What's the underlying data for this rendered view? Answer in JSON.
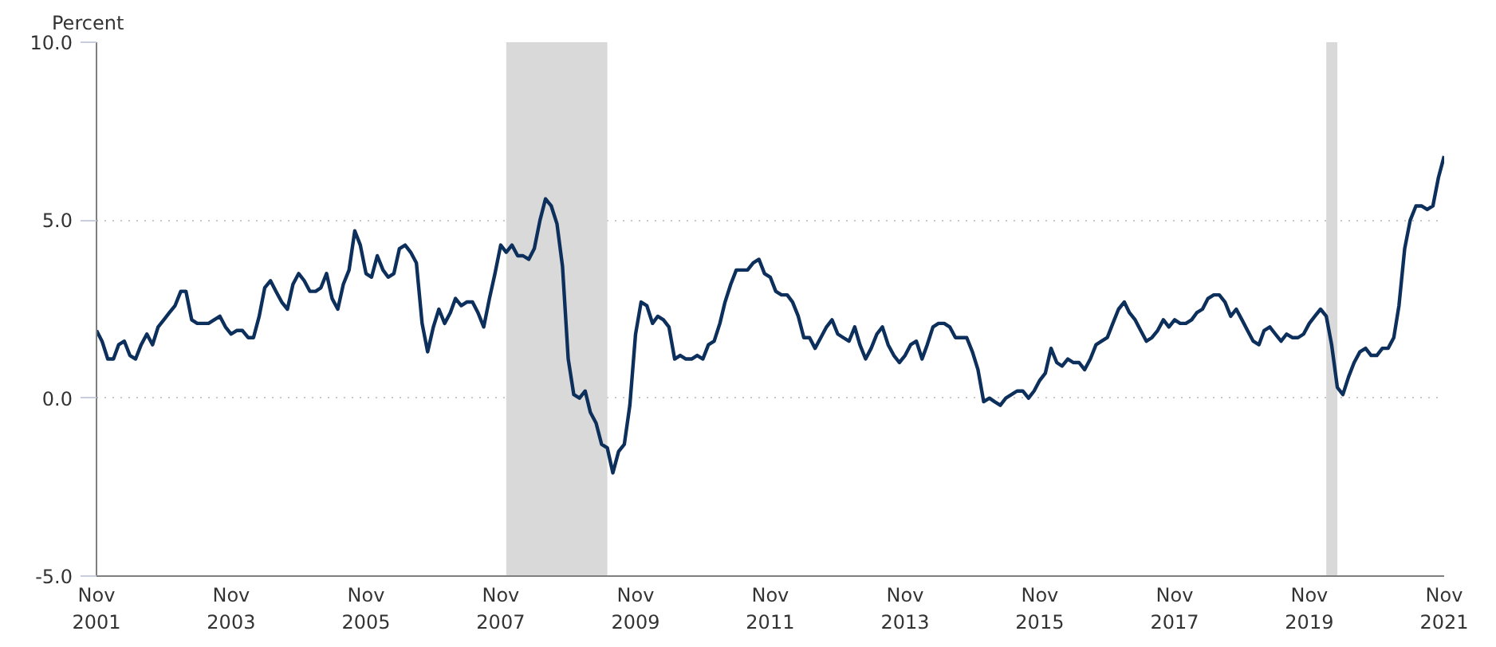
{
  "chart_data": {
    "type": "line",
    "ylabel": "Percent",
    "x": [
      "2001-11",
      "2001-12",
      "2002-01",
      "2002-02",
      "2002-03",
      "2002-04",
      "2002-05",
      "2002-06",
      "2002-07",
      "2002-08",
      "2002-09",
      "2002-10",
      "2002-11",
      "2002-12",
      "2003-01",
      "2003-02",
      "2003-03",
      "2003-04",
      "2003-05",
      "2003-06",
      "2003-07",
      "2003-08",
      "2003-09",
      "2003-10",
      "2003-11",
      "2003-12",
      "2004-01",
      "2004-02",
      "2004-03",
      "2004-04",
      "2004-05",
      "2004-06",
      "2004-07",
      "2004-08",
      "2004-09",
      "2004-10",
      "2004-11",
      "2004-12",
      "2005-01",
      "2005-02",
      "2005-03",
      "2005-04",
      "2005-05",
      "2005-06",
      "2005-07",
      "2005-08",
      "2005-09",
      "2005-10",
      "2005-11",
      "2005-12",
      "2006-01",
      "2006-02",
      "2006-03",
      "2006-04",
      "2006-05",
      "2006-06",
      "2006-07",
      "2006-08",
      "2006-09",
      "2006-10",
      "2006-11",
      "2006-12",
      "2007-01",
      "2007-02",
      "2007-03",
      "2007-04",
      "2007-05",
      "2007-06",
      "2007-07",
      "2007-08",
      "2007-09",
      "2007-10",
      "2007-11",
      "2007-12",
      "2008-01",
      "2008-02",
      "2008-03",
      "2008-04",
      "2008-05",
      "2008-06",
      "2008-07",
      "2008-08",
      "2008-09",
      "2008-10",
      "2008-11",
      "2008-12",
      "2009-01",
      "2009-02",
      "2009-03",
      "2009-04",
      "2009-05",
      "2009-06",
      "2009-07",
      "2009-08",
      "2009-09",
      "2009-10",
      "2009-11",
      "2009-12",
      "2010-01",
      "2010-02",
      "2010-03",
      "2010-04",
      "2010-05",
      "2010-06",
      "2010-07",
      "2010-08",
      "2010-09",
      "2010-10",
      "2010-11",
      "2010-12",
      "2011-01",
      "2011-02",
      "2011-03",
      "2011-04",
      "2011-05",
      "2011-06",
      "2011-07",
      "2011-08",
      "2011-09",
      "2011-10",
      "2011-11",
      "2011-12",
      "2012-01",
      "2012-02",
      "2012-03",
      "2012-04",
      "2012-05",
      "2012-06",
      "2012-07",
      "2012-08",
      "2012-09",
      "2012-10",
      "2012-11",
      "2012-12",
      "2013-01",
      "2013-02",
      "2013-03",
      "2013-04",
      "2013-05",
      "2013-06",
      "2013-07",
      "2013-08",
      "2013-09",
      "2013-10",
      "2013-11",
      "2013-12",
      "2014-01",
      "2014-02",
      "2014-03",
      "2014-04",
      "2014-05",
      "2014-06",
      "2014-07",
      "2014-08",
      "2014-09",
      "2014-10",
      "2014-11",
      "2014-12",
      "2015-01",
      "2015-02",
      "2015-03",
      "2015-04",
      "2015-05",
      "2015-06",
      "2015-07",
      "2015-08",
      "2015-09",
      "2015-10",
      "2015-11",
      "2015-12",
      "2016-01",
      "2016-02",
      "2016-03",
      "2016-04",
      "2016-05",
      "2016-06",
      "2016-07",
      "2016-08",
      "2016-09",
      "2016-10",
      "2016-11",
      "2016-12",
      "2017-01",
      "2017-02",
      "2017-03",
      "2017-04",
      "2017-05",
      "2017-06",
      "2017-07",
      "2017-08",
      "2017-09",
      "2017-10",
      "2017-11",
      "2017-12",
      "2018-01",
      "2018-02",
      "2018-03",
      "2018-04",
      "2018-05",
      "2018-06",
      "2018-07",
      "2018-08",
      "2018-09",
      "2018-10",
      "2018-11",
      "2018-12",
      "2019-01",
      "2019-02",
      "2019-03",
      "2019-04",
      "2019-05",
      "2019-06",
      "2019-07",
      "2019-08",
      "2019-09",
      "2019-10",
      "2019-11",
      "2019-12",
      "2020-01",
      "2020-02",
      "2020-03",
      "2020-04",
      "2020-05",
      "2020-06",
      "2020-07",
      "2020-08",
      "2020-09",
      "2020-10",
      "2020-11",
      "2020-12",
      "2021-01",
      "2021-02",
      "2021-03",
      "2021-04",
      "2021-05",
      "2021-06",
      "2021-07",
      "2021-08",
      "2021-09",
      "2021-10",
      "2021-11"
    ],
    "series": [
      {
        "color": "#0d2f5c",
        "values": [
          1.9,
          1.6,
          1.1,
          1.1,
          1.5,
          1.6,
          1.2,
          1.1,
          1.5,
          1.8,
          1.5,
          2.0,
          2.2,
          2.4,
          2.6,
          3.0,
          3.0,
          2.2,
          2.1,
          2.1,
          2.1,
          2.2,
          2.3,
          2.0,
          1.8,
          1.9,
          1.9,
          1.7,
          1.7,
          2.3,
          3.1,
          3.3,
          3.0,
          2.7,
          2.5,
          3.2,
          3.5,
          3.3,
          3.0,
          3.0,
          3.1,
          3.5,
          2.8,
          2.5,
          3.2,
          3.6,
          4.7,
          4.3,
          3.5,
          3.4,
          4.0,
          3.6,
          3.4,
          3.5,
          4.2,
          4.3,
          4.1,
          3.8,
          2.1,
          1.3,
          2.0,
          2.5,
          2.1,
          2.4,
          2.8,
          2.6,
          2.7,
          2.7,
          2.4,
          2.0,
          2.8,
          3.5,
          4.3,
          4.1,
          4.3,
          4.0,
          4.0,
          3.9,
          4.2,
          5.0,
          5.6,
          5.4,
          4.9,
          3.7,
          1.1,
          0.1,
          0.0,
          0.2,
          -0.4,
          -0.7,
          -1.3,
          -1.4,
          -2.1,
          -1.5,
          -1.3,
          -0.2,
          1.8,
          2.7,
          2.6,
          2.1,
          2.3,
          2.2,
          2.0,
          1.1,
          1.2,
          1.1,
          1.1,
          1.2,
          1.1,
          1.5,
          1.6,
          2.1,
          2.7,
          3.2,
          3.6,
          3.6,
          3.6,
          3.8,
          3.9,
          3.5,
          3.4,
          3.0,
          2.9,
          2.9,
          2.7,
          2.3,
          1.7,
          1.7,
          1.4,
          1.7,
          2.0,
          2.2,
          1.8,
          1.7,
          1.6,
          2.0,
          1.5,
          1.1,
          1.4,
          1.8,
          2.0,
          1.5,
          1.2,
          1.0,
          1.2,
          1.5,
          1.6,
          1.1,
          1.5,
          2.0,
          2.1,
          2.1,
          2.0,
          1.7,
          1.7,
          1.7,
          1.3,
          0.8,
          -0.1,
          0.0,
          -0.1,
          -0.2,
          0.0,
          0.1,
          0.2,
          0.2,
          0.0,
          0.2,
          0.5,
          0.7,
          1.4,
          1.0,
          0.9,
          1.1,
          1.0,
          1.0,
          0.8,
          1.1,
          1.5,
          1.6,
          1.7,
          2.1,
          2.5,
          2.7,
          2.4,
          2.2,
          1.9,
          1.6,
          1.7,
          1.9,
          2.2,
          2.0,
          2.2,
          2.1,
          2.1,
          2.2,
          2.4,
          2.5,
          2.8,
          2.9,
          2.9,
          2.7,
          2.3,
          2.5,
          2.2,
          1.9,
          1.6,
          1.5,
          1.9,
          2.0,
          1.8,
          1.6,
          1.8,
          1.7,
          1.7,
          1.8,
          2.1,
          2.3,
          2.5,
          2.3,
          1.5,
          0.3,
          0.1,
          0.6,
          1.0,
          1.3,
          1.4,
          1.2,
          1.2,
          1.4,
          1.4,
          1.7,
          2.6,
          4.2,
          5.0,
          5.4,
          5.4,
          5.3,
          5.4,
          6.2,
          6.8
        ]
      }
    ],
    "xlim": [
      "2001-11",
      "2021-11"
    ],
    "xticks": [
      {
        "value": "2001-11",
        "label": "Nov\n2001"
      },
      {
        "value": "2003-11",
        "label": "Nov\n2003"
      },
      {
        "value": "2005-11",
        "label": "Nov\n2005"
      },
      {
        "value": "2007-11",
        "label": "Nov\n2007"
      },
      {
        "value": "2009-11",
        "label": "Nov\n2009"
      },
      {
        "value": "2011-11",
        "label": "Nov\n2011"
      },
      {
        "value": "2013-11",
        "label": "Nov\n2013"
      },
      {
        "value": "2015-11",
        "label": "Nov\n2015"
      },
      {
        "value": "2017-11",
        "label": "Nov\n2017"
      },
      {
        "value": "2019-11",
        "label": "Nov\n2019"
      },
      {
        "value": "2021-11",
        "label": "Nov\n2021"
      }
    ],
    "ylim": [
      -5,
      10
    ],
    "yticks": [
      {
        "value": -5,
        "label": "-5.0"
      },
      {
        "value": 0,
        "label": "0.0"
      },
      {
        "value": 5,
        "label": "5.0"
      },
      {
        "value": 10,
        "label": "10.0"
      }
    ],
    "bands": [
      {
        "axis": "x",
        "from": "2007-12",
        "to": "2009-06",
        "color": "#d9d9d9"
      },
      {
        "axis": "x",
        "from": "2020-02",
        "to": "2020-04",
        "color": "#d9d9d9"
      }
    ],
    "grid": "y",
    "line_style": "solid",
    "marker": "none"
  }
}
